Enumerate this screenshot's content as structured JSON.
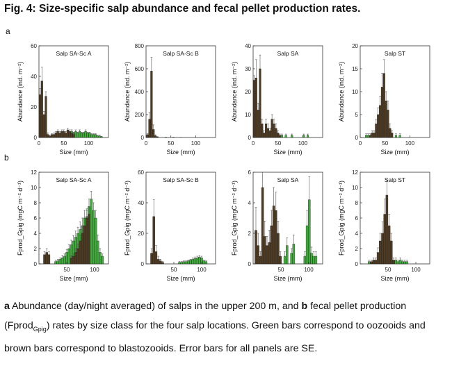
{
  "figure": {
    "title": "Fig. 4: Size-specific salp abundance and fecal pellet production rates.",
    "panel_a_label": "a",
    "panel_b_label": "b"
  },
  "caption": {
    "a_bold": "a",
    "a_text": " Abundance (day/night averaged) of salps in the upper 200 m, and ",
    "b_bold": "b",
    "b_text_1": " fecal pellet production (Fprod",
    "b_sub": "Gpig",
    "b_text_2": ") rates by size class for the four salp locations. Green bars correspond to oozooids and brown bars correspond to blastozooids. Error bars for all panels are SE."
  },
  "colors": {
    "blasto": "#4f3a22",
    "oozo": "#3fae3a",
    "axis": "#333333"
  },
  "chart_data": [
    {
      "type": "bar",
      "row": "a",
      "title": "Salp SA-Sc A",
      "xlabel": "Size (mm)",
      "ylabel": "Abundance (ind. m⁻²)",
      "xlim": [
        0,
        140
      ],
      "xticks": [
        0,
        50,
        100
      ],
      "ylim": [
        0,
        60
      ],
      "yticks": [
        0,
        20,
        40,
        60
      ],
      "series": [
        {
          "name": "blastozooids",
          "x": [
            2,
            6,
            10,
            14,
            18,
            22,
            26,
            30,
            34,
            38,
            42,
            46,
            50,
            54,
            58,
            62,
            66,
            70
          ],
          "values": [
            28,
            37,
            15,
            27,
            2,
            1,
            2,
            2,
            3,
            4,
            3,
            4,
            4,
            3,
            5,
            4,
            3,
            2
          ],
          "err": [
            4,
            9,
            2,
            3,
            1,
            0.5,
            0.5,
            1,
            1,
            1,
            1,
            1,
            1,
            1,
            1,
            1,
            1,
            0.5
          ]
        },
        {
          "name": "oozooids",
          "x": [
            58,
            62,
            66,
            70,
            74,
            78,
            82,
            86,
            90,
            94,
            98,
            102,
            106,
            110,
            114,
            118,
            122,
            126
          ],
          "values": [
            2,
            3,
            4,
            3,
            4,
            3,
            4,
            3,
            3,
            4,
            3,
            3,
            2,
            2,
            2,
            1,
            1,
            0.5
          ],
          "err": [
            0.5,
            0.5,
            1,
            0.5,
            1,
            0.5,
            1,
            0.5,
            0.5,
            1,
            0.5,
            0.5,
            0.5,
            0.5,
            0.5,
            0.5,
            0.5,
            0.3
          ]
        }
      ]
    },
    {
      "type": "bar",
      "row": "a",
      "title": "Salp SA-Sc B",
      "xlabel": "Size (mm)",
      "ylabel": "Abundance (ind. m⁻²)",
      "xlim": [
        0,
        140
      ],
      "xticks": [
        0,
        50,
        100
      ],
      "ylim": [
        0,
        800
      ],
      "yticks": [
        0,
        200,
        400,
        600,
        800
      ],
      "series": [
        {
          "name": "blastozooids",
          "x": [
            3,
            7,
            11,
            15,
            19,
            23
          ],
          "values": [
            25,
            160,
            580,
            70,
            15,
            5
          ],
          "err": [
            10,
            60,
            120,
            40,
            8,
            3
          ]
        },
        {
          "name": "oozooids",
          "x": [
            40,
            55,
            70
          ],
          "values": [
            2,
            2,
            1
          ],
          "err": [
            1,
            1,
            0.5
          ]
        }
      ]
    },
    {
      "type": "bar",
      "row": "a",
      "title": "Salp SA",
      "xlabel": "Size (mm)",
      "ylabel": "Abundance (ind. m⁻²)",
      "xlim": [
        0,
        140
      ],
      "xticks": [
        0,
        50,
        100
      ],
      "ylim": [
        0,
        40
      ],
      "yticks": [
        0,
        10,
        20,
        30,
        40
      ],
      "series": [
        {
          "name": "blastozooids",
          "x": [
            2,
            6,
            10,
            14,
            18,
            22,
            26,
            30,
            34,
            38,
            42,
            46,
            50,
            54
          ],
          "values": [
            25,
            26,
            12,
            30,
            6,
            2,
            6,
            4,
            3,
            8,
            6,
            4,
            2,
            1
          ],
          "err": [
            2,
            8,
            3,
            6,
            2,
            1,
            2,
            2,
            1,
            2,
            2,
            2,
            1,
            0.5
          ]
        },
        {
          "name": "oozooids",
          "x": [
            58,
            66,
            78,
            102,
            110
          ],
          "values": [
            1,
            1,
            1,
            1,
            1
          ],
          "err": [
            0.5,
            0.5,
            0.5,
            0.5,
            0.5
          ]
        }
      ]
    },
    {
      "type": "bar",
      "row": "a",
      "title": "Salp ST",
      "xlabel": "Size (mm)",
      "ylabel": "Abundance (ind. m⁻²)",
      "xlim": [
        0,
        140
      ],
      "xticks": [
        0,
        50,
        100
      ],
      "ylim": [
        0,
        20
      ],
      "yticks": [
        0,
        5,
        10,
        15,
        20
      ],
      "series": [
        {
          "name": "blastozooids",
          "x": [
            20,
            24,
            28,
            32,
            36,
            40,
            44,
            48,
            52,
            56,
            60,
            64
          ],
          "values": [
            0.5,
            1,
            1,
            3,
            5,
            7,
            11,
            14,
            8,
            6,
            2,
            1
          ],
          "err": [
            0.3,
            0.5,
            0.5,
            1,
            1.5,
            2,
            3,
            3,
            2,
            2,
            1,
            0.5
          ]
        },
        {
          "name": "oozooids",
          "x": [
            12,
            16,
            40,
            56,
            60,
            72,
            80
          ],
          "values": [
            0.5,
            0.5,
            0.5,
            1,
            1,
            0.5,
            0.5
          ],
          "err": [
            0.3,
            0.3,
            0.3,
            0.5,
            0.5,
            0.3,
            0.3
          ]
        }
      ]
    },
    {
      "type": "bar",
      "row": "b",
      "title": "Salp SA-Sc A",
      "xlabel": "Size (mm)",
      "ylabel": "Fprod_Gpig (mgC m⁻² d⁻¹)",
      "xlim": [
        0,
        125
      ],
      "xticks": [
        50,
        100
      ],
      "ylim": [
        0,
        12
      ],
      "yticks": [
        0,
        2,
        4,
        6,
        8,
        10,
        12
      ],
      "series": [
        {
          "name": "blastozooids",
          "x": [
            10,
            14,
            18,
            58,
            62,
            66,
            70,
            74,
            78,
            82,
            86,
            90
          ],
          "values": [
            1.2,
            1.5,
            1.2,
            0.8,
            1,
            1.5,
            2,
            3,
            4,
            5,
            6,
            6.5
          ],
          "err": [
            0.4,
            0.5,
            0.4,
            0.3,
            0.3,
            0.5,
            0.6,
            0.8,
            1,
            1,
            1,
            1
          ]
        },
        {
          "name": "oozooids",
          "x": [
            30,
            34,
            38,
            42,
            46,
            50,
            54,
            58,
            62,
            66,
            70,
            74,
            78,
            82,
            86,
            90,
            94,
            98,
            102,
            106,
            110,
            114
          ],
          "values": [
            0.3,
            0.4,
            0.6,
            0.8,
            1,
            1.5,
            2,
            2.5,
            3,
            3.5,
            4,
            4.5,
            5,
            6,
            6.2,
            7.5,
            8.5,
            7,
            6,
            3,
            1.5,
            1
          ],
          "err": [
            0.2,
            0.2,
            0.2,
            0.3,
            0.3,
            0.4,
            0.5,
            0.6,
            0.7,
            0.8,
            0.8,
            1,
            1,
            1,
            1,
            1,
            1,
            1,
            1,
            0.8,
            0.5,
            0.3
          ]
        }
      ]
    },
    {
      "type": "bar",
      "row": "b",
      "title": "Salp SA-Sc B",
      "xlabel": "Size (mm)",
      "ylabel": "Fprod_Gpig (mgC m⁻² d⁻¹)",
      "xlim": [
        0,
        125
      ],
      "xticks": [
        50,
        100
      ],
      "ylim": [
        0,
        60
      ],
      "yticks": [
        0,
        20,
        40,
        60
      ],
      "series": [
        {
          "name": "blastozooids",
          "x": [
            10,
            14,
            18,
            22,
            26,
            30
          ],
          "values": [
            7,
            31,
            8,
            3,
            2,
            1
          ],
          "err": [
            3,
            11,
            4,
            2,
            1,
            0.5
          ]
        },
        {
          "name": "oozooids",
          "x": [
            60,
            64,
            68,
            72,
            76,
            80,
            84,
            88,
            92,
            96,
            100,
            104,
            108
          ],
          "values": [
            1,
            1,
            1.5,
            1.5,
            2,
            2.5,
            3,
            3.5,
            4,
            4.5,
            4,
            2,
            1.5
          ],
          "err": [
            0.5,
            0.5,
            0.5,
            0.5,
            0.5,
            0.5,
            1,
            1,
            1,
            1,
            1,
            0.5,
            0.5
          ]
        }
      ]
    },
    {
      "type": "bar",
      "row": "b",
      "title": "Salp SA",
      "xlabel": "Size (mm)",
      "ylabel": "Fprod_Gpig (mgC m⁻² d⁻¹)",
      "xlim": [
        0,
        125
      ],
      "xticks": [
        50,
        100
      ],
      "ylim": [
        0,
        6
      ],
      "yticks": [
        0,
        2,
        4,
        6
      ],
      "series": [
        {
          "name": "blastozooids",
          "x": [
            5,
            9,
            13,
            17,
            21,
            25,
            29,
            33,
            37,
            41,
            45,
            49
          ],
          "values": [
            2.2,
            1.2,
            0.5,
            5,
            1.8,
            1.2,
            1.4,
            2.5,
            3.8,
            3.5,
            2,
            0.5
          ],
          "err": [
            1.5,
            0.8,
            0.3,
            1.5,
            1,
            0.6,
            0.8,
            1,
            1.2,
            1.2,
            0.8,
            0.3
          ]
        },
        {
          "name": "oozooids",
          "x": [
            57,
            61,
            69,
            73,
            93,
            97,
            101,
            105,
            109,
            113
          ],
          "values": [
            0.5,
            1.2,
            0.7,
            1.3,
            0.5,
            2.5,
            4.2,
            0.7,
            0.5,
            0.5
          ],
          "err": [
            0.3,
            0.5,
            0.3,
            0.6,
            0.3,
            1,
            1.5,
            0.4,
            0.3,
            0.3
          ]
        }
      ]
    },
    {
      "type": "bar",
      "row": "b",
      "title": "Salp ST",
      "xlabel": "Size (mm)",
      "ylabel": "Fprod_Gpig (mgC m⁻² d⁻¹)",
      "xlim": [
        0,
        125
      ],
      "xticks": [
        50,
        100
      ],
      "ylim": [
        0,
        12
      ],
      "yticks": [
        0,
        2,
        4,
        6,
        8,
        10,
        12
      ],
      "series": [
        {
          "name": "blastozooids",
          "x": [
            20,
            24,
            28,
            32,
            36,
            40,
            44,
            48,
            52,
            56,
            60
          ],
          "values": [
            0.3,
            0.5,
            0.5,
            1.5,
            3,
            4,
            6.5,
            9,
            5,
            3,
            0.5
          ],
          "err": [
            0.2,
            0.3,
            0.3,
            0.6,
            1,
            1.5,
            2,
            2,
            1.5,
            1,
            0.3
          ]
        },
        {
          "name": "oozooids",
          "x": [
            16,
            40,
            64,
            68,
            72,
            76,
            80,
            84
          ],
          "values": [
            0.3,
            0.5,
            0.5,
            0.3,
            0.5,
            0.3,
            0.3,
            0.3
          ],
          "err": [
            0.2,
            0.3,
            0.3,
            0.2,
            0.3,
            0.2,
            0.2,
            0.2
          ]
        }
      ]
    }
  ]
}
